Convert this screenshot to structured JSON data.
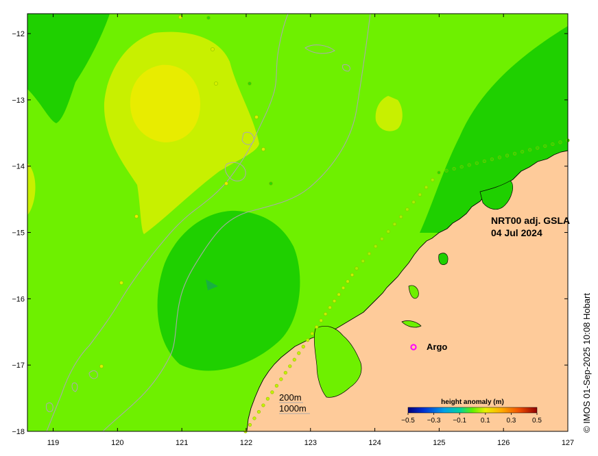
{
  "map": {
    "title_line1": "NRT00 adj. GSLA",
    "title_line2": "04 Jul 2024",
    "copyright": "© IMOS 01-Sep-2025 10:08 Hobart",
    "argo_label": "Argo",
    "depth_label_200": "200m",
    "depth_label_1000": "1000m",
    "x_ticks": [
      "119",
      "120",
      "121",
      "122",
      "123",
      "124",
      "125",
      "126",
      "127"
    ],
    "y_ticks": [
      "−12",
      "−13",
      "−14",
      "−15",
      "−16",
      "−17",
      "−18"
    ],
    "lon_range": [
      118.6,
      127
    ],
    "lat_range": [
      -18,
      -11.7
    ],
    "colorbar": {
      "title": "height anomaly (m)",
      "tick_labels": [
        "−0.5",
        "−0.3",
        "−0.1",
        "0.1",
        "0.3",
        "0.5"
      ],
      "range": [
        -0.5,
        0.5
      ]
    },
    "colors": {
      "base_anomaly": "#6ef000",
      "low_anomaly": "#1fd000",
      "high_anomaly": "#c8f000",
      "peak_anomaly": "#e8ec00",
      "land": "#fecb9a",
      "coastline": "#000000",
      "bathymetry": "#aaaaaa",
      "argo": "#ff00ff"
    }
  }
}
